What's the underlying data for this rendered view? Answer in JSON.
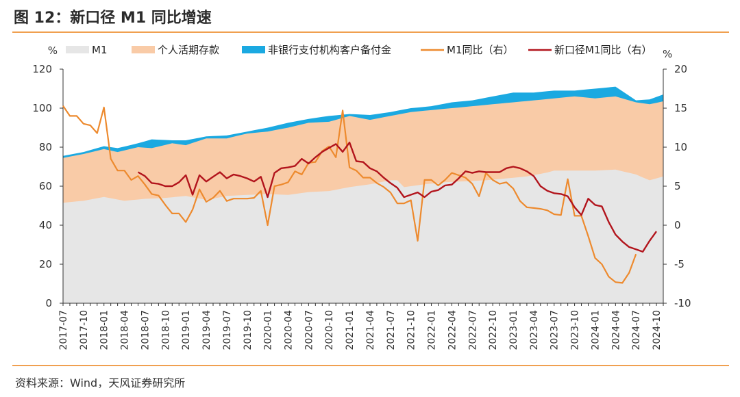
{
  "figure": {
    "title": "图 12：新口径 M1 同比增速",
    "source": "资料来源：Wind，天风证券研究所"
  },
  "chart_data": {
    "type": "area",
    "left_unit": "%",
    "right_unit": "%",
    "left_axis": {
      "min": 0,
      "max": 120,
      "ticks": [
        0,
        20,
        40,
        60,
        80,
        100,
        120
      ]
    },
    "right_axis": {
      "min": -10,
      "max": 20,
      "ticks": [
        -10,
        -5,
        0,
        5,
        10,
        15,
        20
      ]
    },
    "x_ticks": [
      "2017-07",
      "2017-10",
      "2018-01",
      "2018-04",
      "2018-07",
      "2018-10",
      "2019-01",
      "2019-04",
      "2019-07",
      "2019-10",
      "2020-01",
      "2020-04",
      "2020-07",
      "2020-10",
      "2021-01",
      "2021-04",
      "2021-07",
      "2021-10",
      "2022-01",
      "2022-04",
      "2022-07",
      "2022-10",
      "2023-01",
      "2023-04",
      "2023-07",
      "2023-10",
      "2024-01",
      "2024-04",
      "2024-07",
      "2024-10"
    ],
    "start_month": "2017-07",
    "n_months": 89,
    "legend": [
      {
        "name": "M1",
        "kind": "area",
        "color": "#e6e6e6"
      },
      {
        "name": "个人活期存款",
        "kind": "area",
        "color": "#f9cba7"
      },
      {
        "name": "非银行支付机构客户备付金",
        "kind": "area",
        "color": "#1ba9e1"
      },
      {
        "name": "M1同比（右）",
        "kind": "line",
        "color": "#ed8a2e"
      },
      {
        "name": "新口径M1同比（右）",
        "kind": "line",
        "color": "#b2141c"
      }
    ],
    "series": [
      {
        "name": "M1",
        "axis": "left",
        "anchors": [
          [
            0,
            51.5
          ],
          [
            3,
            52.5
          ],
          [
            6,
            54.5
          ],
          [
            9,
            52.5
          ],
          [
            12,
            53.5
          ],
          [
            15,
            54
          ],
          [
            18,
            55
          ],
          [
            21,
            53
          ],
          [
            24,
            55
          ],
          [
            27,
            55.5
          ],
          [
            30,
            56
          ],
          [
            33,
            55.5
          ],
          [
            36,
            57
          ],
          [
            39,
            57.5
          ],
          [
            42,
            59.5
          ],
          [
            45,
            61
          ],
          [
            48,
            63
          ],
          [
            49,
            63
          ],
          [
            50,
            59.5
          ],
          [
            53,
            61
          ],
          [
            56,
            62
          ],
          [
            59,
            62.5
          ],
          [
            62,
            63
          ],
          [
            65,
            64
          ],
          [
            68,
            65
          ],
          [
            71,
            67
          ],
          [
            72,
            68
          ],
          [
            75,
            68
          ],
          [
            78,
            68
          ],
          [
            81,
            68.5
          ],
          [
            84,
            66
          ],
          [
            86,
            63
          ],
          [
            88,
            65
          ]
        ]
      },
      {
        "name": "个人活期存款",
        "axis": "left",
        "anchors": [
          [
            0,
            74.5
          ],
          [
            3,
            76.5
          ],
          [
            6,
            79
          ],
          [
            8,
            77.5
          ],
          [
            11,
            80
          ],
          [
            13,
            79.5
          ],
          [
            16,
            82
          ],
          [
            18,
            81
          ],
          [
            21,
            84.5
          ],
          [
            24,
            84.5
          ],
          [
            27,
            87
          ],
          [
            30,
            88
          ],
          [
            33,
            90
          ],
          [
            36,
            92.5
          ],
          [
            39,
            93
          ],
          [
            42,
            96
          ],
          [
            45,
            94
          ],
          [
            48,
            96
          ],
          [
            51,
            98
          ],
          [
            54,
            99
          ],
          [
            57,
            100
          ],
          [
            60,
            101
          ],
          [
            63,
            102
          ],
          [
            66,
            103
          ],
          [
            69,
            104
          ],
          [
            72,
            105
          ],
          [
            75,
            106
          ],
          [
            78,
            105
          ],
          [
            81,
            106
          ],
          [
            84,
            103
          ],
          [
            86,
            102
          ],
          [
            88,
            103.5
          ]
        ]
      },
      {
        "name": "非银行支付机构客户备付金",
        "axis": "left",
        "anchors": [
          [
            0,
            75.5
          ],
          [
            3,
            77.5
          ],
          [
            6,
            80.5
          ],
          [
            8,
            79.5
          ],
          [
            11,
            82
          ],
          [
            13,
            84
          ],
          [
            16,
            83.5
          ],
          [
            18,
            83.5
          ],
          [
            21,
            85.5
          ],
          [
            24,
            86
          ],
          [
            27,
            88
          ],
          [
            30,
            90
          ],
          [
            33,
            92.5
          ],
          [
            36,
            94.5
          ],
          [
            39,
            96
          ],
          [
            42,
            97
          ],
          [
            45,
            96.5
          ],
          [
            48,
            98
          ],
          [
            51,
            100
          ],
          [
            54,
            101
          ],
          [
            57,
            103
          ],
          [
            60,
            104
          ],
          [
            63,
            106
          ],
          [
            66,
            108
          ],
          [
            69,
            108
          ],
          [
            72,
            109
          ],
          [
            75,
            109
          ],
          [
            78,
            110
          ],
          [
            81,
            111
          ],
          [
            84,
            104
          ],
          [
            86,
            104.5
          ],
          [
            88,
            107
          ]
        ]
      },
      {
        "name": "M1同比（右）",
        "axis": "right",
        "anchors": [
          [
            0,
            15.3
          ],
          [
            1,
            14
          ],
          [
            2,
            14
          ],
          [
            3,
            13
          ],
          [
            4,
            12.8
          ],
          [
            5,
            11.8
          ],
          [
            6,
            15.1
          ],
          [
            7,
            8.5
          ],
          [
            8,
            7
          ],
          [
            9,
            7
          ],
          [
            10,
            5.8
          ],
          [
            11,
            6.3
          ],
          [
            12,
            5.2
          ],
          [
            13,
            4
          ],
          [
            14,
            3.8
          ],
          [
            15,
            2.6
          ],
          [
            16,
            1.5
          ],
          [
            17,
            1.5
          ],
          [
            18,
            0.4
          ],
          [
            19,
            2
          ],
          [
            20,
            4.6
          ],
          [
            21,
            3
          ],
          [
            22,
            3.5
          ],
          [
            23,
            4.4
          ],
          [
            24,
            3.1
          ],
          [
            25,
            3.4
          ],
          [
            26,
            3.4
          ],
          [
            27,
            3.4
          ],
          [
            28,
            3.5
          ],
          [
            29,
            4.4
          ],
          [
            30,
            0
          ],
          [
            31,
            5
          ],
          [
            32,
            5.2
          ],
          [
            33,
            5.5
          ],
          [
            34,
            6.9
          ],
          [
            35,
            6.5
          ],
          [
            36,
            8
          ],
          [
            37,
            8.1
          ],
          [
            38,
            9.5
          ],
          [
            39,
            10.1
          ],
          [
            40,
            8.7
          ],
          [
            41,
            14.7
          ],
          [
            42,
            7.4
          ],
          [
            43,
            7
          ],
          [
            44,
            6.1
          ],
          [
            45,
            6.1
          ],
          [
            46,
            5.4
          ],
          [
            47,
            4.9
          ],
          [
            48,
            4.2
          ],
          [
            49,
            2.8
          ],
          [
            50,
            2.8
          ],
          [
            51,
            3.2
          ],
          [
            52,
            -2
          ],
          [
            53,
            5.8
          ],
          [
            54,
            5.8
          ],
          [
            55,
            5.1
          ],
          [
            56,
            5.8
          ],
          [
            57,
            6.7
          ],
          [
            58,
            6.4
          ],
          [
            59,
            6.1
          ],
          [
            60,
            5.3
          ],
          [
            61,
            3.7
          ],
          [
            62,
            6.7
          ],
          [
            63,
            5.8
          ],
          [
            64,
            5.3
          ],
          [
            65,
            5.5
          ],
          [
            66,
            4.7
          ],
          [
            67,
            3.1
          ],
          [
            68,
            2.3
          ],
          [
            69,
            2.2
          ],
          [
            70,
            2.1
          ],
          [
            71,
            1.9
          ],
          [
            72,
            1.4
          ],
          [
            73,
            1.3
          ],
          [
            74,
            5.9
          ],
          [
            75,
            1.2
          ],
          [
            76,
            1.2
          ],
          [
            77,
            -1.4
          ],
          [
            78,
            -4.2
          ],
          [
            79,
            -5
          ],
          [
            80,
            -6.6
          ],
          [
            81,
            -7.3
          ],
          [
            82,
            -7.4
          ],
          [
            83,
            -6.1
          ],
          [
            84,
            -3.7
          ]
        ]
      },
      {
        "name": "新口径M1同比（右）",
        "axis": "right",
        "anchors": [
          [
            11,
            6.8
          ],
          [
            12,
            6.3
          ],
          [
            13,
            5.4
          ],
          [
            14,
            5.3
          ],
          [
            15,
            5
          ],
          [
            16,
            5
          ],
          [
            17,
            5.5
          ],
          [
            18,
            6.4
          ],
          [
            19,
            3.9
          ],
          [
            20,
            6.4
          ],
          [
            21,
            5.6
          ],
          [
            22,
            6.2
          ],
          [
            23,
            6.8
          ],
          [
            24,
            6
          ],
          [
            25,
            6.5
          ],
          [
            26,
            6.3
          ],
          [
            27,
            6
          ],
          [
            28,
            5.6
          ],
          [
            29,
            6.2
          ],
          [
            30,
            3.6
          ],
          [
            31,
            6.7
          ],
          [
            32,
            7.3
          ],
          [
            33,
            7.4
          ],
          [
            34,
            7.6
          ],
          [
            35,
            8.5
          ],
          [
            36,
            7.9
          ],
          [
            37,
            8.7
          ],
          [
            38,
            9.4
          ],
          [
            39,
            9.9
          ],
          [
            40,
            10.4
          ],
          [
            41,
            9.4
          ],
          [
            42,
            10.6
          ],
          [
            43,
            8.2
          ],
          [
            44,
            8.1
          ],
          [
            45,
            7.3
          ],
          [
            46,
            6.9
          ],
          [
            47,
            6.1
          ],
          [
            48,
            5.4
          ],
          [
            49,
            4.8
          ],
          [
            50,
            3.6
          ],
          [
            51,
            3.9
          ],
          [
            52,
            4.2
          ],
          [
            53,
            3.6
          ],
          [
            54,
            4.3
          ],
          [
            55,
            4.5
          ],
          [
            56,
            5.1
          ],
          [
            57,
            5.2
          ],
          [
            58,
            6
          ],
          [
            59,
            6.9
          ],
          [
            60,
            6.7
          ],
          [
            61,
            6.9
          ],
          [
            62,
            6.8
          ],
          [
            63,
            6.8
          ],
          [
            64,
            6.8
          ],
          [
            65,
            7.3
          ],
          [
            66,
            7.5
          ],
          [
            67,
            7.3
          ],
          [
            68,
            6.9
          ],
          [
            69,
            6.3
          ],
          [
            70,
            5
          ],
          [
            71,
            4.4
          ],
          [
            72,
            4.1
          ],
          [
            73,
            4
          ],
          [
            74,
            3.7
          ],
          [
            75,
            2.3
          ],
          [
            76,
            1.3
          ],
          [
            77,
            3.4
          ],
          [
            78,
            2.6
          ],
          [
            79,
            2.4
          ],
          [
            80,
            0.4
          ],
          [
            81,
            -1.2
          ],
          [
            82,
            -2.1
          ],
          [
            83,
            -2.8
          ],
          [
            84,
            -3.1
          ],
          [
            85,
            -3.4
          ],
          [
            86,
            -2
          ],
          [
            87,
            -0.8
          ]
        ]
      }
    ]
  }
}
